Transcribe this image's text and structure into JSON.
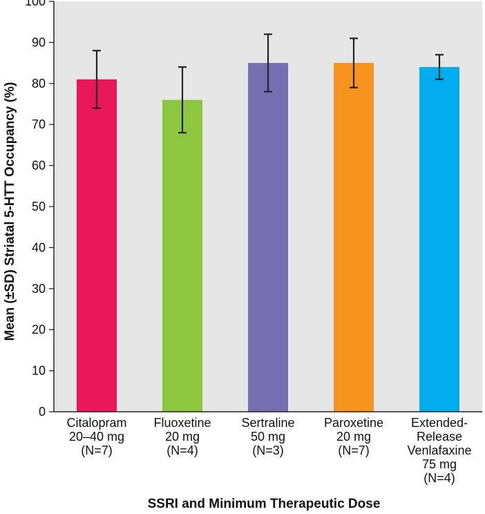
{
  "chart_data": {
    "type": "bar",
    "title": "",
    "xlabel": "SSRI and Minimum Therapeutic Dose",
    "ylabel": "Mean (±SD) Striatal 5-HTT Occupancy (%)",
    "ylim": [
      0,
      100
    ],
    "yticks": [
      0,
      10,
      20,
      30,
      40,
      50,
      60,
      70,
      80,
      90,
      100
    ],
    "grid": false,
    "background": "#e6e6e6",
    "categories": [
      {
        "lines": [
          "Citalopram",
          "20–40 mg",
          "(N=7)"
        ]
      },
      {
        "lines": [
          "Fluoxetine",
          "20 mg",
          "(N=4)"
        ]
      },
      {
        "lines": [
          "Sertraline",
          "50 mg",
          "(N=3)"
        ]
      },
      {
        "lines": [
          "Paroxetine",
          "20 mg",
          "(N=7)"
        ]
      },
      {
        "lines": [
          "Extended-",
          "Release",
          "Venlafaxine",
          "75 mg",
          "(N=4)"
        ]
      }
    ],
    "values": [
      81,
      76,
      85,
      85,
      84
    ],
    "error_low": [
      74,
      68,
      78,
      79,
      81
    ],
    "error_high": [
      88,
      84,
      92,
      91,
      87
    ],
    "colors": [
      "#e8185a",
      "#8dc63f",
      "#7670b2",
      "#f7941d",
      "#00aeef"
    ]
  }
}
